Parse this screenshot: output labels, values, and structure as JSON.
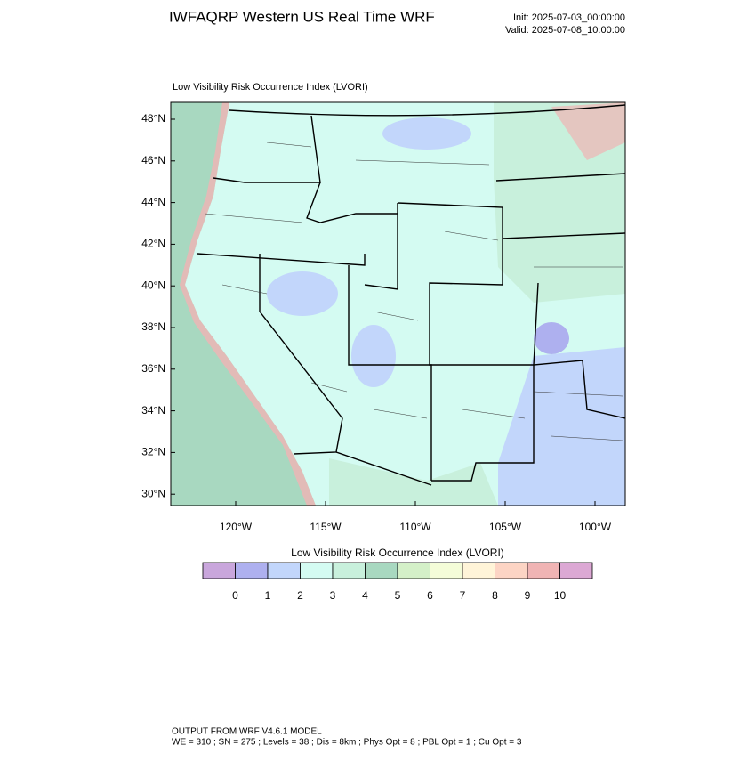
{
  "header": {
    "title": "IWFAQRP Western US Real Time WRF",
    "init": "Init: 2025-07-03_00:00:00",
    "valid": "Valid: 2025-07-08_10:00:00"
  },
  "map": {
    "title": "Low Visibility Risk Occurrence Index   (LVORI)",
    "lat_labels": [
      "48°N",
      "46°N",
      "44°N",
      "42°N",
      "40°N",
      "38°N",
      "36°N",
      "34°N",
      "32°N",
      "30°N"
    ],
    "lon_labels": [
      "120°W",
      "115°W",
      "110°W",
      "105°W",
      "100°W"
    ]
  },
  "colorbar": {
    "title": "Low Visibility Risk Occurrence Index  (LVORI)",
    "colors": [
      "#c9a6dc",
      "#aeb0ef",
      "#c2d6fb",
      "#d4fbf2",
      "#c8f0dc",
      "#a8d8c0",
      "#d4f0c8",
      "#f4fcd8",
      "#fff4d8",
      "#fcd4c4",
      "#f0b4b4",
      "#dca8d4"
    ],
    "labels": [
      "0",
      "1",
      "2",
      "3",
      "4",
      "5",
      "6",
      "7",
      "8",
      "9",
      "10"
    ]
  },
  "footer": {
    "line1": "OUTPUT FROM WRF V4.6.1 MODEL",
    "line2": "WE = 310 ; SN = 275 ; Levels = 38 ; Dis = 8km ; Phys Opt = 8 ; PBL Opt = 1 ; Cu Opt = 3"
  }
}
